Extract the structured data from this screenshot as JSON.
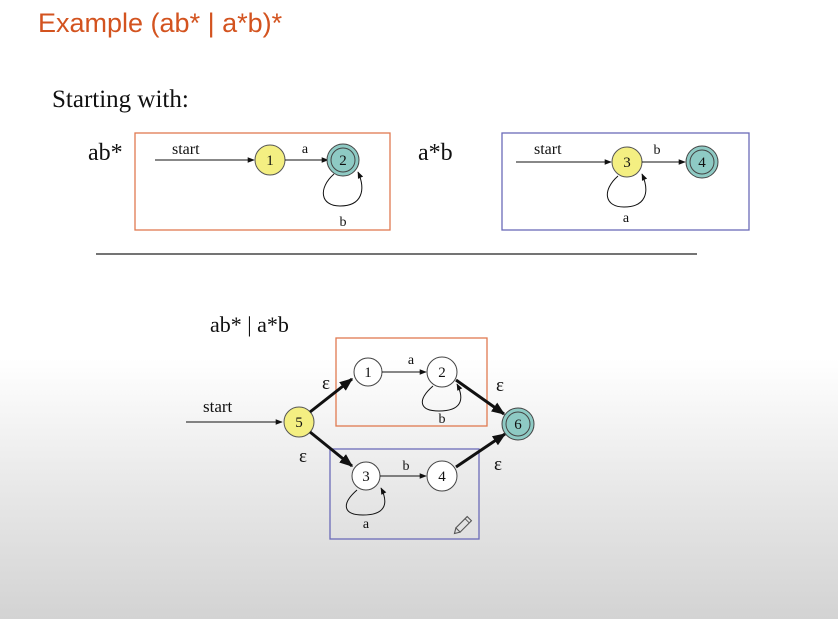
{
  "slide": {
    "title": "Example (ab* | a*b)*",
    "subtitle": "Starting with:"
  },
  "diagram_ab_star": {
    "expression": "ab*",
    "start_label": "start",
    "nodes": [
      "1",
      "2"
    ],
    "transitions": {
      "a": "a",
      "b_loop": "b"
    }
  },
  "diagram_a_star_b": {
    "expression": "a*b",
    "start_label": "start",
    "nodes": [
      "3",
      "4"
    ],
    "transitions": {
      "a_loop": "a",
      "b": "b"
    }
  },
  "diagram_union": {
    "expression": "ab* | a*b",
    "start_label": "start",
    "nodes": [
      "1",
      "2",
      "3",
      "4",
      "5",
      "6"
    ],
    "transitions": {
      "a": "a",
      "b_loop": "b",
      "a_loop": "a",
      "b": "b"
    },
    "epsilon": "ε"
  },
  "colors": {
    "title": "#d3531f",
    "start_state": "#f4ef82",
    "accept_state": "#8ecac4",
    "box_orange": "#e07a50",
    "box_blue": "#6b6bb8"
  },
  "icons": {
    "pencil": "pencil-icon"
  }
}
